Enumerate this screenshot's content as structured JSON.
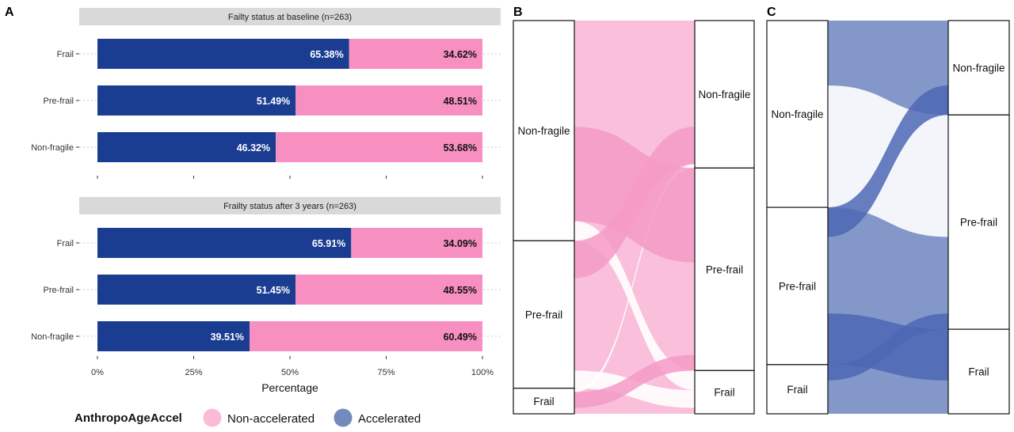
{
  "panel_labels": [
    "A",
    "B",
    "C"
  ],
  "colors": {
    "accelerated": "#1a3d91",
    "non_accelerated": "#f78fc0",
    "facet_strip": "#d9d9d9",
    "panel_b_flow": "#f9bfdb",
    "panel_c_flow": "#8397c9",
    "panel_b_highlight": "#f59ac6",
    "panel_c_highlight": "#4c67b4"
  },
  "legend": {
    "title": "AnthropoAgeAccel",
    "items": [
      {
        "label": "Non-accelerated",
        "color": "#f78fc0"
      },
      {
        "label": "Accelerated",
        "color": "#1a3d91"
      }
    ]
  },
  "chart_data": [
    {
      "type": "bar",
      "orientation": "horizontal",
      "stacked": true,
      "panel": "A",
      "xlabel": "Percentage",
      "xlim": [
        0,
        100
      ],
      "xticks": [
        "0%",
        "25%",
        "50%",
        "75%",
        "100%"
      ],
      "facets": [
        {
          "title": "Failty status at baseline (n=263)",
          "categories": [
            "Frail",
            "Pre-frail",
            "Non-fragile"
          ],
          "series": [
            {
              "name": "Accelerated",
              "values": [
                65.38,
                51.49,
                46.32
              ],
              "labels": [
                "65.38%",
                "51.49%",
                "46.32%"
              ]
            },
            {
              "name": "Non-accelerated",
              "values": [
                34.62,
                48.51,
                53.68
              ],
              "labels": [
                "34.62%",
                "48.51%",
                "53.68%"
              ]
            }
          ]
        },
        {
          "title": "Frailty status after 3 years (n=263)",
          "categories": [
            "Frail",
            "Pre-frail",
            "Non-fragile"
          ],
          "series": [
            {
              "name": "Accelerated",
              "values": [
                65.91,
                51.45,
                39.51
              ],
              "labels": [
                "65.91%",
                "51.45%",
                "39.51%"
              ]
            },
            {
              "name": "Non-accelerated",
              "values": [
                34.09,
                48.55,
                60.49
              ],
              "labels": [
                "34.09%",
                "48.55%",
                "60.49%"
              ]
            }
          ]
        }
      ]
    },
    {
      "type": "alluvial",
      "panel": "B",
      "left_strata": [
        {
          "label": "Non-fragile",
          "share": 0.56
        },
        {
          "label": "Pre-frail",
          "share": 0.375
        },
        {
          "label": "Frail",
          "share": 0.065
        }
      ],
      "right_strata": [
        {
          "label": "Non-fragile",
          "share": 0.375
        },
        {
          "label": "Pre-frail",
          "share": 0.515
        },
        {
          "label": "Frail",
          "share": 0.11
        }
      ],
      "flows": [
        {
          "from": "Non-fragile",
          "to": "Non-fragile",
          "share": 0.27
        },
        {
          "from": "Non-fragile",
          "to": "Pre-frail",
          "share": 0.24
        },
        {
          "from": "Non-fragile",
          "to": "Frail",
          "share": 0.05
        },
        {
          "from": "Pre-frail",
          "to": "Non-fragile",
          "share": 0.095
        },
        {
          "from": "Pre-frail",
          "to": "Pre-frail",
          "share": 0.235
        },
        {
          "from": "Pre-frail",
          "to": "Frail",
          "share": 0.045
        },
        {
          "from": "Frail",
          "to": "Non-fragile",
          "share": 0.01
        },
        {
          "from": "Frail",
          "to": "Pre-frail",
          "share": 0.04
        },
        {
          "from": "Frail",
          "to": "Frail",
          "share": 0.015
        }
      ],
      "highlight": [
        "Non-fragile→Pre-frail",
        "Pre-frail→Non-fragile",
        "Frail→Pre-frail"
      ]
    },
    {
      "type": "alluvial",
      "panel": "C",
      "left_strata": [
        {
          "label": "Non-fragile",
          "share": 0.475
        },
        {
          "label": "Pre-frail",
          "share": 0.4
        },
        {
          "label": "Frail",
          "share": 0.125
        }
      ],
      "right_strata": [
        {
          "label": "Non-fragile",
          "share": 0.24
        },
        {
          "label": "Pre-frail",
          "share": 0.545
        },
        {
          "label": "Frail",
          "share": 0.215
        }
      ],
      "flows": [
        {
          "from": "Non-fragile",
          "to": "Non-fragile",
          "share": 0.165
        },
        {
          "from": "Non-fragile",
          "to": "Pre-frail",
          "share": 0.31
        },
        {
          "from": "Pre-frail",
          "to": "Non-fragile",
          "share": 0.075
        },
        {
          "from": "Pre-frail",
          "to": "Pre-frail",
          "share": 0.195
        },
        {
          "from": "Pre-frail",
          "to": "Frail",
          "share": 0.13
        },
        {
          "from": "Frail",
          "to": "Pre-frail",
          "share": 0.04
        },
        {
          "from": "Frail",
          "to": "Frail",
          "share": 0.085
        }
      ],
      "highlight": [
        "Pre-frail→Non-fragile",
        "Pre-frail→Frail",
        "Frail→Pre-frail"
      ]
    }
  ]
}
